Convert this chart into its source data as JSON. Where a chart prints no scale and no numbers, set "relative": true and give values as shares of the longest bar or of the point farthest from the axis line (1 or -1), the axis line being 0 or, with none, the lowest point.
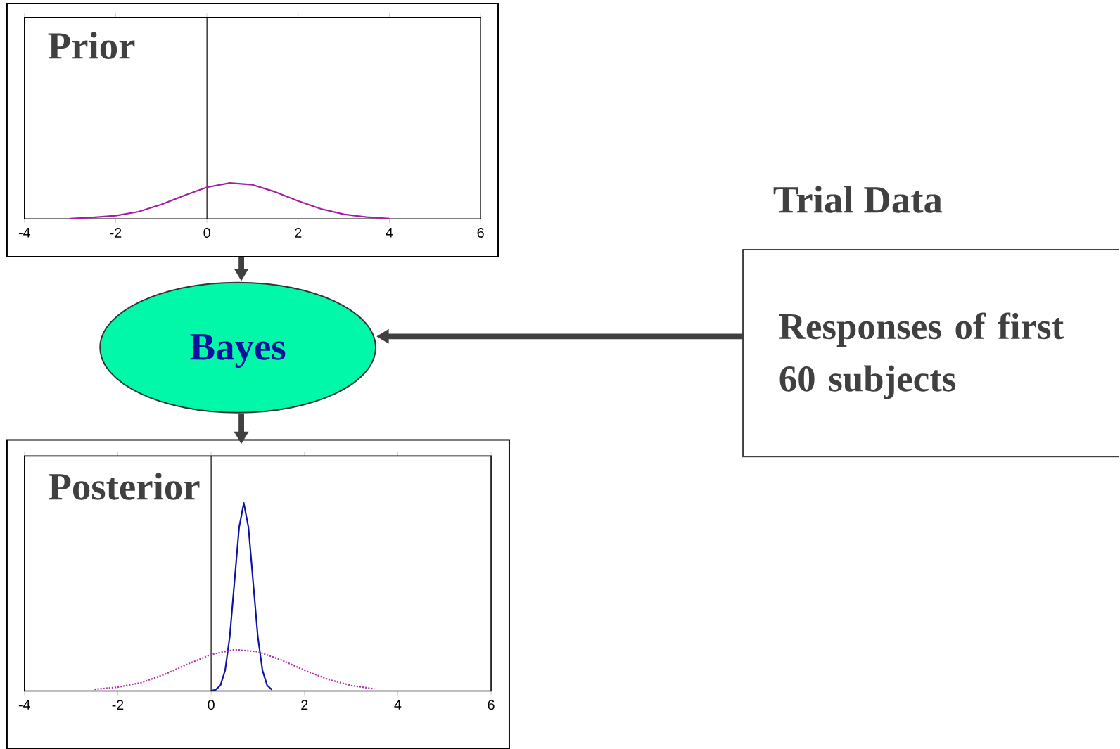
{
  "chart_data": [
    {
      "type": "line",
      "title": "Prior",
      "relative": true,
      "tick_labels": "x",
      "xlim": [
        -4,
        6
      ],
      "xticks": [
        -4,
        -2,
        0,
        2,
        4,
        6
      ],
      "x": [
        -3,
        -2.5,
        -2,
        -1.5,
        -1,
        -0.5,
        0,
        0.5,
        1,
        1.5,
        2,
        2.5,
        3,
        3.5,
        4
      ],
      "values": [
        0.01,
        0.04,
        0.09,
        0.2,
        0.4,
        0.65,
        0.88,
        1.0,
        0.95,
        0.75,
        0.5,
        0.28,
        0.13,
        0.05,
        0.01
      ],
      "color": "#a020a0"
    },
    {
      "type": "line",
      "title": "Posterior",
      "relative": true,
      "tick_labels": "x",
      "xlim": [
        -4,
        6
      ],
      "xticks": [
        -4,
        -2,
        0,
        2,
        4,
        6
      ],
      "series": [
        {
          "color": "#0a14a0",
          "line_style": "solid",
          "x": [
            0,
            0.1,
            0.2,
            0.3,
            0.4,
            0.5,
            0.6,
            0.7,
            0.8,
            0.9,
            1.0,
            1.1,
            1.2,
            1.3
          ],
          "values": [
            0.001,
            0.007,
            0.03,
            0.11,
            0.29,
            0.58,
            0.87,
            1.0,
            0.87,
            0.58,
            0.29,
            0.11,
            0.03,
            0.007
          ]
        },
        {
          "color": "#b030b0",
          "line_style": "dotted",
          "x": [
            -2.5,
            -2,
            -1.5,
            -1,
            -0.5,
            0,
            0.5,
            1,
            1.5,
            2,
            2.5,
            3,
            3.5
          ],
          "values": [
            0.009,
            0.02,
            0.044,
            0.088,
            0.143,
            0.194,
            0.22,
            0.209,
            0.165,
            0.11,
            0.062,
            0.029,
            0.011
          ]
        }
      ]
    },
    {
      "type": "other",
      "title": "Trial Data",
      "annotations": [
        "Bayes",
        "Responses of first 60 subjects"
      ]
    }
  ]
}
